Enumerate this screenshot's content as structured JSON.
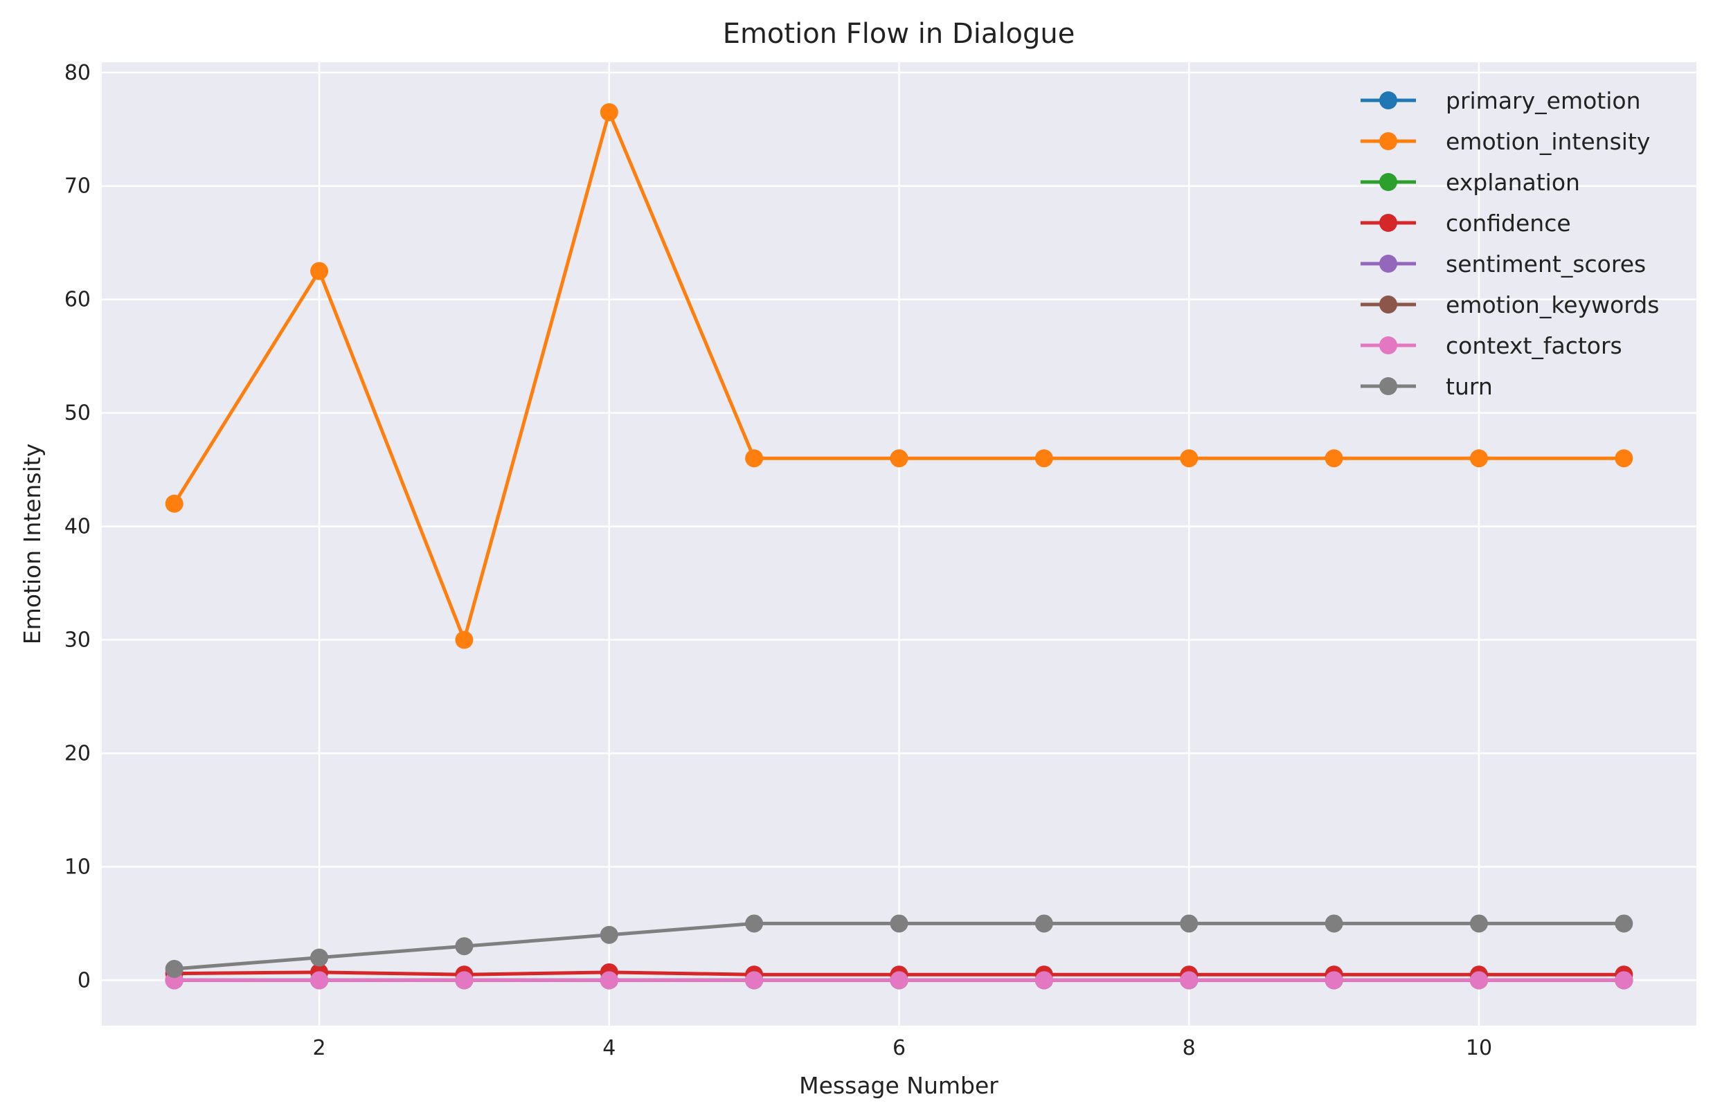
{
  "chart_data": {
    "type": "line",
    "title": "Emotion Flow in Dialogue",
    "xlabel": "Message Number",
    "ylabel": "Emotion Intensity",
    "xlim": [
      0.5,
      11.5
    ],
    "ylim": [
      -4,
      80.9
    ],
    "xticks": [
      2,
      4,
      6,
      8,
      10
    ],
    "yticks": [
      0,
      10,
      20,
      30,
      40,
      50,
      60,
      70,
      80
    ],
    "grid": true,
    "legend_position": "top-right",
    "x": [
      1,
      2,
      3,
      4,
      5,
      6,
      7,
      8,
      9,
      10,
      11
    ],
    "series": [
      {
        "name": "primary_emotion",
        "color": "#1f77b4",
        "values": [
          0,
          0,
          0,
          0,
          0,
          0,
          0,
          0,
          0,
          0,
          0
        ]
      },
      {
        "name": "emotion_intensity",
        "color": "#ff7f0e",
        "values": [
          42,
          62.5,
          30,
          76.5,
          46,
          46,
          46,
          46,
          46,
          46,
          46
        ]
      },
      {
        "name": "explanation",
        "color": "#2ca02c",
        "values": [
          0,
          0,
          0,
          0,
          0,
          0,
          0,
          0,
          0,
          0,
          0
        ]
      },
      {
        "name": "confidence",
        "color": "#d62728",
        "values": [
          0.6,
          0.7,
          0.5,
          0.7,
          0.5,
          0.5,
          0.5,
          0.5,
          0.5,
          0.5,
          0.5
        ]
      },
      {
        "name": "sentiment_scores",
        "color": "#9467bd",
        "values": [
          0,
          0,
          0,
          0,
          0,
          0,
          0,
          0,
          0,
          0,
          0
        ]
      },
      {
        "name": "emotion_keywords",
        "color": "#8c564b",
        "values": [
          0,
          0,
          0,
          0,
          0,
          0,
          0,
          0,
          0,
          0,
          0
        ]
      },
      {
        "name": "context_factors",
        "color": "#e377c2",
        "values": [
          0,
          0,
          0,
          0,
          0,
          0,
          0,
          0,
          0,
          0,
          0
        ]
      },
      {
        "name": "turn",
        "color": "#7f7f7f",
        "values": [
          1,
          2,
          3,
          4,
          5,
          5,
          5,
          5,
          5,
          5,
          5
        ]
      }
    ]
  }
}
